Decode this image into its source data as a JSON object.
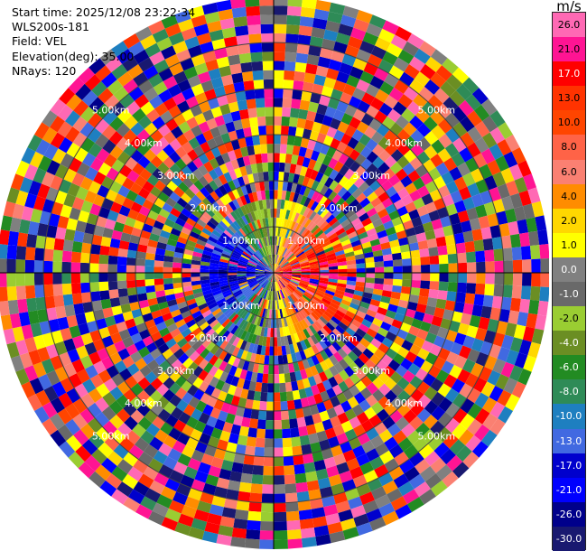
{
  "info": {
    "start_time": "Start time: 2025/12/08 23:22:34",
    "instrument": "WLS200s-181",
    "field": "Field: VEL",
    "elevation": "Elevation(deg): 35.00",
    "nrays": "NRays: 120"
  },
  "chart_data": {
    "type": "ppi",
    "field": "VEL",
    "units": "m/s",
    "nrays": 120,
    "elevation_deg": 35.0,
    "range_rings_km": [
      1.0,
      2.0,
      3.0,
      4.0,
      5.0
    ],
    "ring_labels": [
      "1.00km",
      "2.00km",
      "3.00km",
      "4.00km",
      "5.00km"
    ],
    "max_range_km": 6.0,
    "colorbar": {
      "title": "m/s",
      "min": -30.0,
      "max": 30.0,
      "labels": [
        "26.0",
        "21.0",
        "17.0",
        "13.0",
        "10.0",
        "8.0",
        "6.0",
        "4.0",
        "2.0",
        "1.0",
        "0.0",
        "-1.0",
        "-2.0",
        "-4.0",
        "-6.0",
        "-8.0",
        "-10.0",
        "-13.0",
        "-17.0",
        "-21.0",
        "-26.0",
        "-30.0"
      ],
      "colors": [
        "#ff69b4",
        "#ff1493",
        "#ff0000",
        "#ff3300",
        "#ff4500",
        "#ff6347",
        "#fa8072",
        "#ff8c00",
        "#ffd700",
        "#ffff00",
        "#808080",
        "#696969",
        "#9acd32",
        "#6b8e23",
        "#228b22",
        "#2e8b57",
        "#1e7fc0",
        "#4169e1",
        "#0000cd",
        "#0000ff",
        "#00008b",
        "#191970"
      ]
    }
  }
}
